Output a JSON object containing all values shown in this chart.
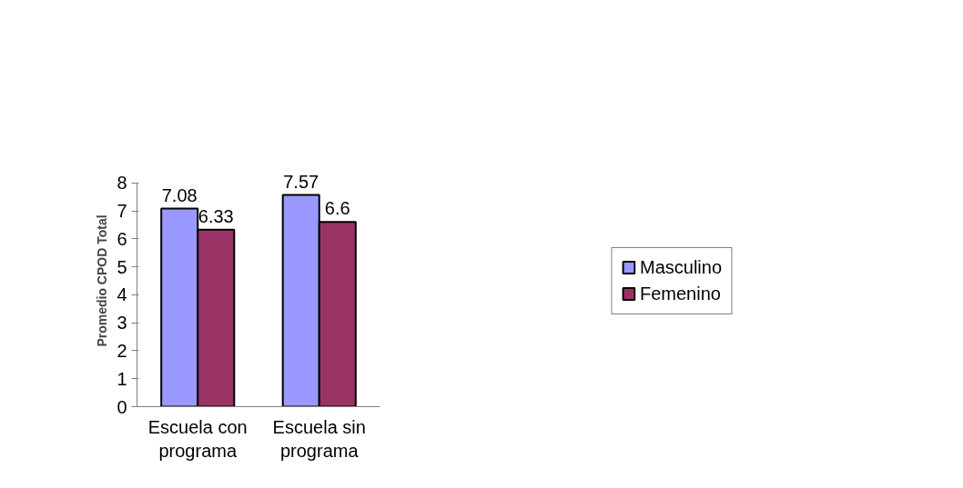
{
  "chart_data": {
    "type": "bar",
    "ylabel": "Promedio CPOD Total",
    "categories": [
      "Escuela con\nprograma",
      "Escuela sin\nprograma"
    ],
    "series": [
      {
        "name": "Masculino",
        "color": "#9999ff",
        "values": [
          7.08,
          7.57
        ]
      },
      {
        "name": "Femenino",
        "color": "#993366",
        "values": [
          6.33,
          6.6
        ]
      }
    ],
    "ylim": [
      0,
      8
    ],
    "yticks": [
      0,
      1,
      2,
      3,
      4,
      5,
      6,
      7,
      8
    ],
    "data_labels": true,
    "grid": false,
    "legend": "right"
  }
}
